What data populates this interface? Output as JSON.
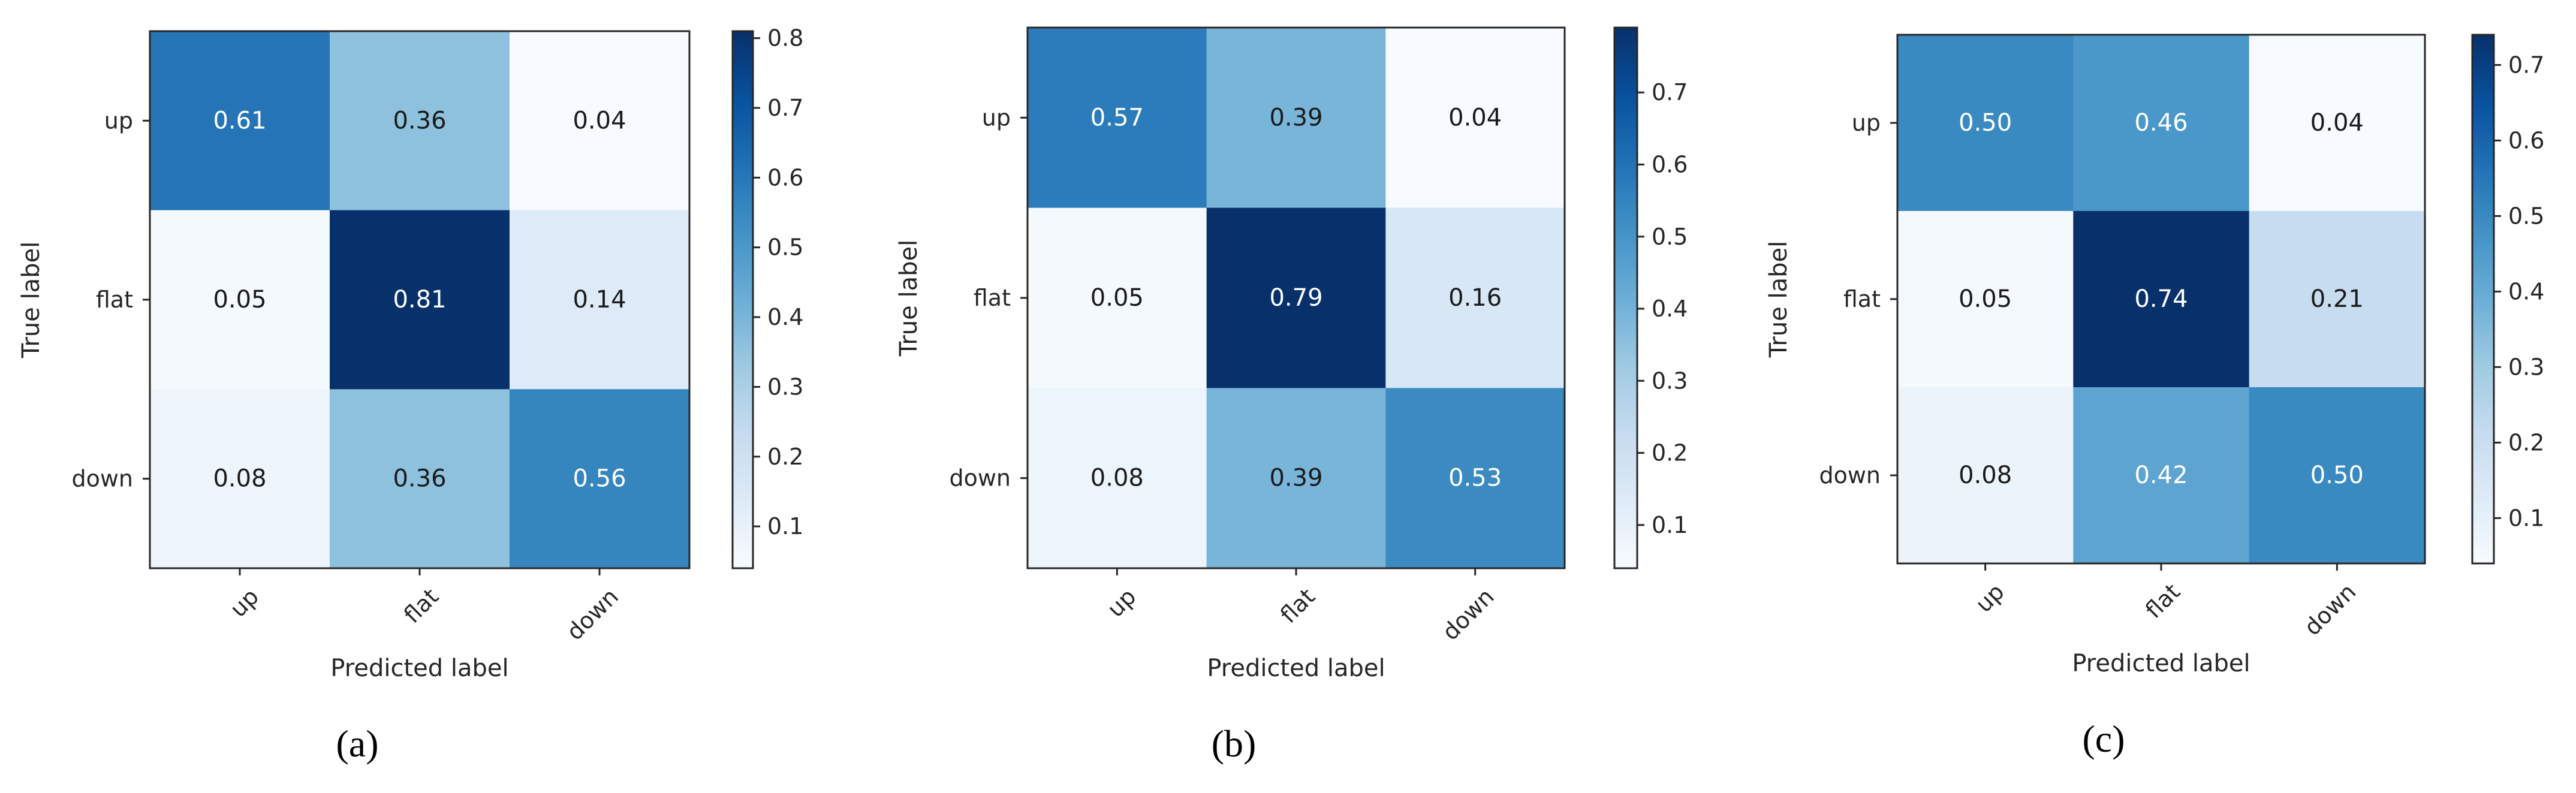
{
  "chart_data": [
    {
      "type": "heatmap",
      "panel_label": "a",
      "title": "",
      "xlabel": "Predicted label",
      "ylabel": "True label",
      "x_categories": [
        "up",
        "flat",
        "down"
      ],
      "y_categories": [
        "up",
        "flat",
        "down"
      ],
      "values": [
        [
          0.61,
          0.36,
          0.04
        ],
        [
          0.05,
          0.81,
          0.14
        ],
        [
          0.08,
          0.36,
          0.56
        ]
      ],
      "value_labels": [
        [
          "0.61",
          "0.36",
          "0.04"
        ],
        [
          "0.05",
          "0.81",
          "0.14"
        ],
        [
          "0.08",
          "0.36",
          "0.56"
        ]
      ],
      "colormap": "Blues",
      "color_range": [
        0.04,
        0.81
      ],
      "colorbar_ticks": [
        0.1,
        0.2,
        0.3,
        0.4,
        0.5,
        0.6,
        0.7,
        0.8
      ],
      "colorbar_tick_labels": [
        "0.1",
        "0.2",
        "0.3",
        "0.4",
        "0.5",
        "0.6",
        "0.7",
        "0.8"
      ]
    },
    {
      "type": "heatmap",
      "panel_label": "b",
      "title": "",
      "xlabel": "Predicted label",
      "ylabel": "True label",
      "x_categories": [
        "up",
        "flat",
        "down"
      ],
      "y_categories": [
        "up",
        "flat",
        "down"
      ],
      "values": [
        [
          0.57,
          0.39,
          0.04
        ],
        [
          0.05,
          0.79,
          0.16
        ],
        [
          0.08,
          0.39,
          0.53
        ]
      ],
      "value_labels": [
        [
          "0.57",
          "0.39",
          "0.04"
        ],
        [
          "0.05",
          "0.79",
          "0.16"
        ],
        [
          "0.08",
          "0.39",
          "0.53"
        ]
      ],
      "colormap": "Blues",
      "color_range": [
        0.04,
        0.79
      ],
      "colorbar_ticks": [
        0.1,
        0.2,
        0.3,
        0.4,
        0.5,
        0.6,
        0.7
      ],
      "colorbar_tick_labels": [
        "0.1",
        "0.2",
        "0.3",
        "0.4",
        "0.5",
        "0.6",
        "0.7"
      ]
    },
    {
      "type": "heatmap",
      "panel_label": "c",
      "title": "",
      "xlabel": "Predicted label",
      "ylabel": "True label",
      "x_categories": [
        "up",
        "flat",
        "down"
      ],
      "y_categories": [
        "up",
        "flat",
        "down"
      ],
      "values": [
        [
          0.5,
          0.46,
          0.04
        ],
        [
          0.05,
          0.74,
          0.21
        ],
        [
          0.08,
          0.42,
          0.5
        ]
      ],
      "value_labels": [
        [
          "0.50",
          "0.46",
          "0.04"
        ],
        [
          "0.05",
          "0.74",
          "0.21"
        ],
        [
          "0.08",
          "0.42",
          "0.50"
        ]
      ],
      "colormap": "Blues",
      "color_range": [
        0.04,
        0.74
      ],
      "colorbar_ticks": [
        0.1,
        0.2,
        0.3,
        0.4,
        0.5,
        0.6,
        0.7
      ],
      "colorbar_tick_labels": [
        "0.1",
        "0.2",
        "0.3",
        "0.4",
        "0.5",
        "0.6",
        "0.7"
      ]
    }
  ],
  "captions": [
    "(a)",
    "(b)",
    "(c)"
  ]
}
